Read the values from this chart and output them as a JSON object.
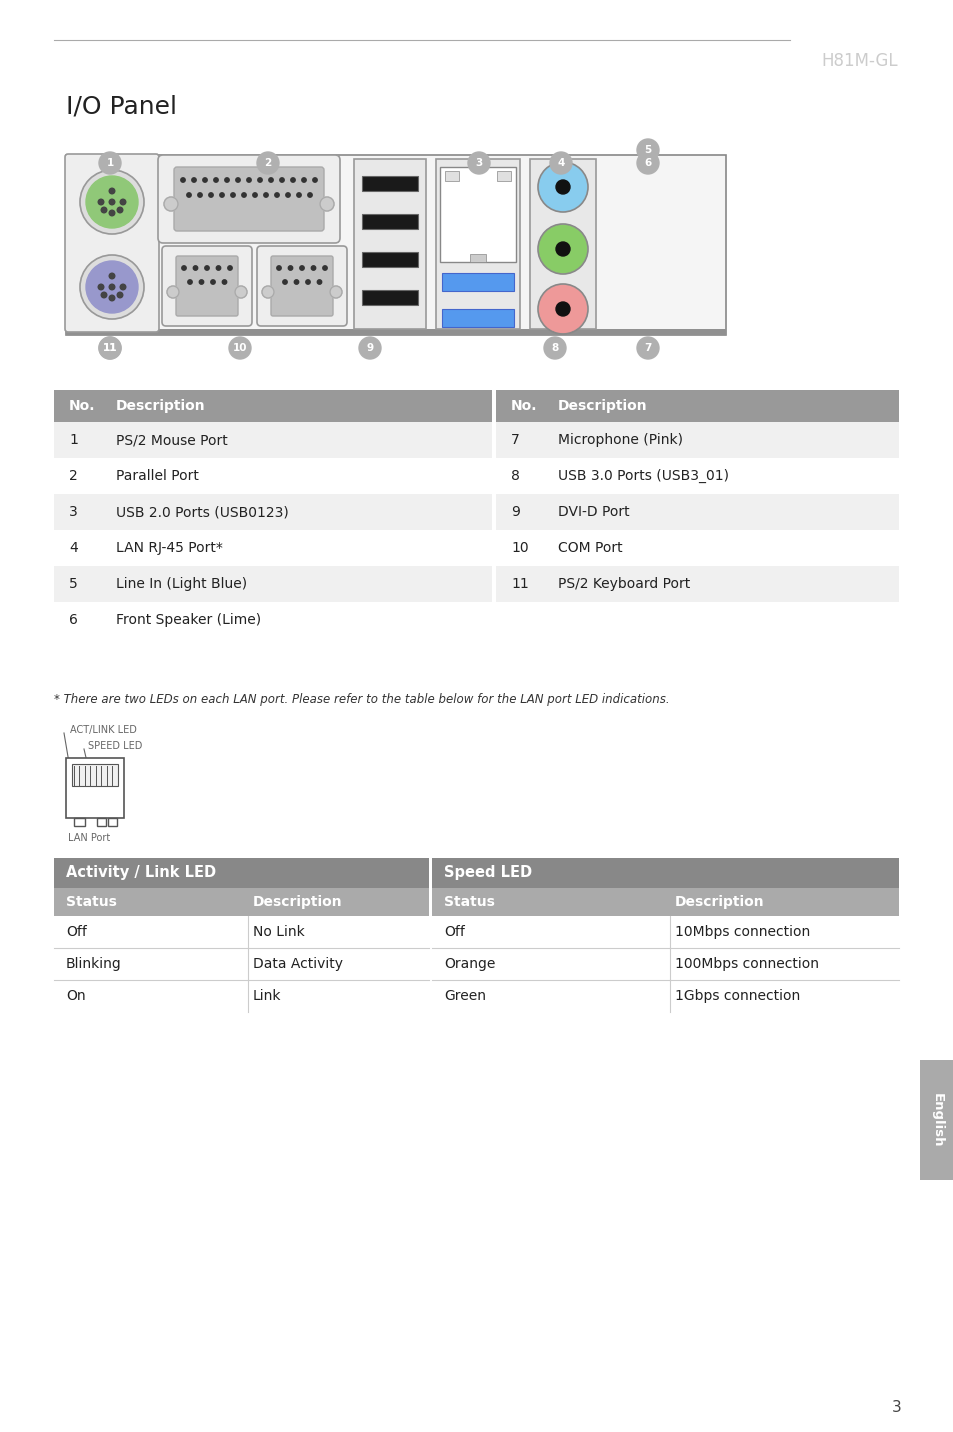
{
  "page_title": "H81M-GL",
  "section_title": "I/O Panel",
  "top_line_color": "#aaaaaa",
  "background_color": "#ffffff",
  "table1_header_color": "#999999",
  "table1_rows": [
    [
      "1",
      "PS/2 Mouse Port"
    ],
    [
      "2",
      "Parallel Port"
    ],
    [
      "3",
      "USB 2.0 Ports (USB0123)"
    ],
    [
      "4",
      "LAN RJ-45 Port*"
    ],
    [
      "5",
      "Line In (Light Blue)"
    ],
    [
      "6",
      "Front Speaker (Lime)"
    ]
  ],
  "table1_right_rows": [
    [
      "7",
      "Microphone (Pink)"
    ],
    [
      "8",
      "USB 3.0 Ports (USB3_01)"
    ],
    [
      "9",
      "DVI-D Port"
    ],
    [
      "10",
      "COM Port"
    ],
    [
      "11",
      "PS/2 Keyboard Port"
    ]
  ],
  "footnote": "* There are two LEDs on each LAN port. Please refer to the table below for the LAN port LED indications.",
  "act_link_label": "ACT/LINK LED",
  "speed_led_label": "SPEED LED",
  "lan_port_label": "LAN Port",
  "table2_col1_header": "Activity / Link LED",
  "table2_col2_header": "Speed LED",
  "table2_rows": [
    [
      "Off",
      "No Link",
      "Off",
      "10Mbps connection"
    ],
    [
      "Blinking",
      "Data Activity",
      "Orange",
      "100Mbps connection"
    ],
    [
      "On",
      "Link",
      "Green",
      "1Gbps connection"
    ]
  ],
  "table2_header_color": "#888888",
  "table2_subheader_color": "#aaaaaa",
  "english_tab_color": "#aaaaaa",
  "page_number": "3",
  "num_circle_color": "#b0b0b0",
  "ps2_mouse_color": "#90c878",
  "ps2_kb_color": "#9898cc",
  "audio_blue_color": "#88ccee",
  "audio_green_color": "#88cc66",
  "audio_pink_color": "#ee9999",
  "usb3_blue_color": "#5599ee",
  "parallel_gray": "#c0c0c0"
}
